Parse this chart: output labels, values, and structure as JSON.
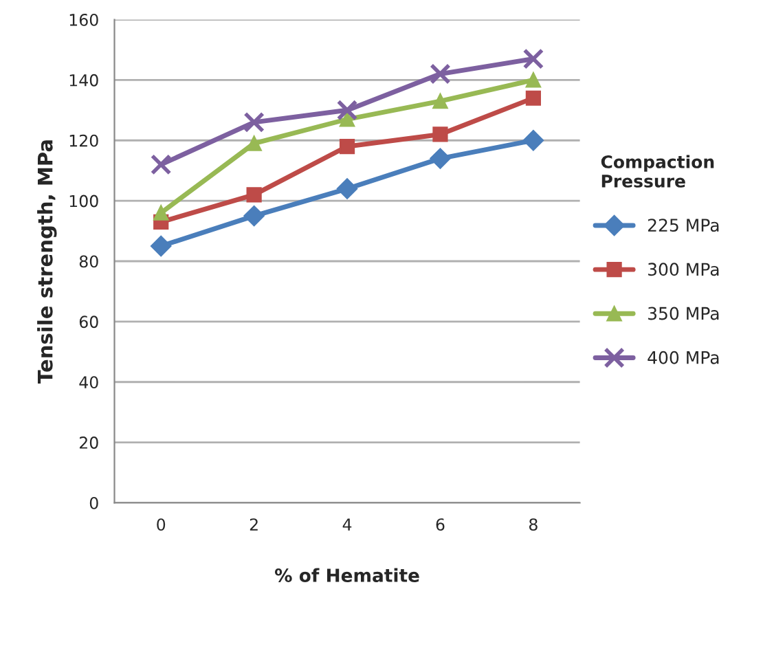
{
  "chart_data": {
    "type": "line",
    "xlabel": "% of Hematite",
    "ylabel": "Tensile strength, MPa",
    "legend_title": "Compaction Pressure",
    "categories": [
      "0",
      "2",
      "4",
      "6",
      "8"
    ],
    "series": [
      {
        "name": "225 MPa",
        "color": "#4a7ebb",
        "marker": "diamond",
        "values": [
          85,
          95,
          104,
          114,
          120
        ]
      },
      {
        "name": "300 MPa",
        "color": "#be4b48",
        "marker": "square",
        "values": [
          93,
          102,
          118,
          122,
          134
        ]
      },
      {
        "name": "350 MPa",
        "color": "#98b954",
        "marker": "triangle",
        "values": [
          96,
          119,
          127,
          133,
          140
        ]
      },
      {
        "name": "400 MPa",
        "color": "#7d60a0",
        "marker": "cross",
        "values": [
          112,
          126,
          130,
          142,
          147
        ]
      }
    ],
    "ylim": [
      0,
      160
    ],
    "yticks": [
      0,
      20,
      40,
      60,
      80,
      100,
      120,
      140,
      160
    ],
    "grid": "y",
    "legend": "right"
  }
}
